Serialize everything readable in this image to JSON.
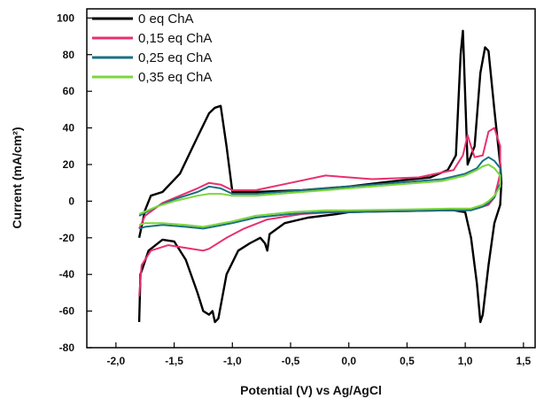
{
  "chart_data": {
    "type": "line",
    "title": "",
    "xlabel": "Potential (V) vs Ag/AgCl",
    "ylabel": "Current (mA/cm²)",
    "xlim": [
      -2.25,
      1.6
    ],
    "ylim": [
      -80,
      105
    ],
    "xticks": [
      "-2,0",
      "-1,5",
      "-1,0",
      "-0,5",
      "0,0",
      "0,5",
      "1,0",
      "1,5"
    ],
    "xtick_values": [
      -2.0,
      -1.5,
      -1.0,
      -0.5,
      0.0,
      0.5,
      1.0,
      1.5
    ],
    "yticks": [
      "-80",
      "-60",
      "-40",
      "-20",
      "0",
      "20",
      "40",
      "60",
      "80",
      "100"
    ],
    "ytick_values": [
      -80,
      -60,
      -40,
      -20,
      0,
      20,
      40,
      60,
      80,
      100
    ],
    "grid": false,
    "legend_position": "top-left",
    "series": [
      {
        "name": "0 eq ChA",
        "color": "#000000",
        "points": [
          [
            -1.8,
            -66
          ],
          [
            -1.79,
            -40
          ],
          [
            -1.72,
            -27
          ],
          [
            -1.6,
            -21
          ],
          [
            -1.5,
            -22
          ],
          [
            -1.4,
            -32
          ],
          [
            -1.3,
            -50
          ],
          [
            -1.25,
            -60
          ],
          [
            -1.2,
            -62
          ],
          [
            -1.17,
            -60
          ],
          [
            -1.15,
            -66
          ],
          [
            -1.12,
            -64
          ],
          [
            -1.05,
            -40
          ],
          [
            -0.95,
            -27
          ],
          [
            -0.85,
            -23
          ],
          [
            -0.76,
            -20
          ],
          [
            -0.72,
            -23
          ],
          [
            -0.7,
            -27
          ],
          [
            -0.68,
            -18
          ],
          [
            -0.55,
            -12
          ],
          [
            -0.35,
            -9
          ],
          [
            -0.1,
            -7
          ],
          [
            0.0,
            -6
          ],
          [
            0.3,
            -5.5
          ],
          [
            0.6,
            -5
          ],
          [
            0.9,
            -5
          ],
          [
            1.0,
            -6
          ],
          [
            1.05,
            -20
          ],
          [
            1.1,
            -45
          ],
          [
            1.13,
            -66
          ],
          [
            1.15,
            -62
          ],
          [
            1.2,
            -35
          ],
          [
            1.25,
            -12
          ],
          [
            1.3,
            -2
          ],
          [
            1.31,
            10
          ],
          [
            1.3,
            20
          ],
          [
            1.25,
            50
          ],
          [
            1.2,
            82
          ],
          [
            1.17,
            84
          ],
          [
            1.13,
            70
          ],
          [
            1.08,
            30
          ],
          [
            1.02,
            20
          ],
          [
            0.98,
            93
          ],
          [
            0.96,
            80
          ],
          [
            0.92,
            25
          ],
          [
            0.85,
            17
          ],
          [
            0.7,
            13
          ],
          [
            0.4,
            11
          ],
          [
            0.0,
            8
          ],
          [
            -0.4,
            6
          ],
          [
            -0.8,
            5
          ],
          [
            -1.0,
            5
          ],
          [
            -1.05,
            30
          ],
          [
            -1.1,
            52
          ],
          [
            -1.15,
            51
          ],
          [
            -1.2,
            48
          ],
          [
            -1.3,
            35
          ],
          [
            -1.45,
            15
          ],
          [
            -1.6,
            5
          ],
          [
            -1.7,
            3
          ],
          [
            -1.75,
            -5
          ],
          [
            -1.8,
            -20
          ]
        ]
      },
      {
        "name": "0,15 eq ChA",
        "color": "#e8306f",
        "points": [
          [
            -1.8,
            -52
          ],
          [
            -1.78,
            -35
          ],
          [
            -1.7,
            -27
          ],
          [
            -1.55,
            -24
          ],
          [
            -1.35,
            -26
          ],
          [
            -1.25,
            -27
          ],
          [
            -1.2,
            -26
          ],
          [
            -1.05,
            -20
          ],
          [
            -0.9,
            -15
          ],
          [
            -0.7,
            -10
          ],
          [
            -0.4,
            -7
          ],
          [
            -0.1,
            -6
          ],
          [
            0.0,
            -6
          ],
          [
            0.5,
            -5.5
          ],
          [
            0.9,
            -5
          ],
          [
            1.0,
            -5
          ],
          [
            1.1,
            -4
          ],
          [
            1.15,
            -3
          ],
          [
            1.2,
            -2
          ],
          [
            1.25,
            2
          ],
          [
            1.3,
            15
          ],
          [
            1.3,
            30
          ],
          [
            1.25,
            40
          ],
          [
            1.2,
            38
          ],
          [
            1.15,
            25
          ],
          [
            1.08,
            24
          ],
          [
            1.05,
            30
          ],
          [
            1.02,
            36
          ],
          [
            0.98,
            25
          ],
          [
            0.9,
            17
          ],
          [
            0.6,
            13
          ],
          [
            0.2,
            12
          ],
          [
            -0.2,
            14
          ],
          [
            -0.5,
            10
          ],
          [
            -0.8,
            6
          ],
          [
            -1.0,
            6
          ],
          [
            -1.1,
            9
          ],
          [
            -1.2,
            10
          ],
          [
            -1.3,
            7
          ],
          [
            -1.45,
            3
          ],
          [
            -1.6,
            -1
          ],
          [
            -1.75,
            -8
          ],
          [
            -1.8,
            -15
          ]
        ]
      },
      {
        "name": "0,25 eq ChA",
        "color": "#1a7080",
        "points": [
          [
            -1.8,
            -15
          ],
          [
            -1.75,
            -14
          ],
          [
            -1.6,
            -13
          ],
          [
            -1.4,
            -14
          ],
          [
            -1.25,
            -15
          ],
          [
            -1.0,
            -12
          ],
          [
            -0.8,
            -9
          ],
          [
            -0.5,
            -7
          ],
          [
            -0.2,
            -6
          ],
          [
            0.0,
            -6
          ],
          [
            0.5,
            -5.5
          ],
          [
            0.9,
            -5
          ],
          [
            1.05,
            -5
          ],
          [
            1.15,
            -3
          ],
          [
            1.2,
            -1
          ],
          [
            1.25,
            2
          ],
          [
            1.3,
            10
          ],
          [
            1.3,
            18
          ],
          [
            1.25,
            22
          ],
          [
            1.2,
            24
          ],
          [
            1.15,
            22
          ],
          [
            1.1,
            18
          ],
          [
            1.0,
            15
          ],
          [
            0.8,
            12
          ],
          [
            0.4,
            10
          ],
          [
            0.0,
            8
          ],
          [
            -0.4,
            6
          ],
          [
            -0.8,
            4
          ],
          [
            -1.0,
            4
          ],
          [
            -1.1,
            7
          ],
          [
            -1.2,
            8
          ],
          [
            -1.3,
            5
          ],
          [
            -1.5,
            1
          ],
          [
            -1.65,
            -3
          ],
          [
            -1.8,
            -8
          ]
        ]
      },
      {
        "name": "0,35 eq ChA",
        "color": "#7cd63c",
        "points": [
          [
            -1.8,
            -13
          ],
          [
            -1.75,
            -12
          ],
          [
            -1.6,
            -12
          ],
          [
            -1.4,
            -13
          ],
          [
            -1.25,
            -14
          ],
          [
            -1.0,
            -11
          ],
          [
            -0.8,
            -8
          ],
          [
            -0.5,
            -6
          ],
          [
            -0.2,
            -5
          ],
          [
            0.0,
            -5
          ],
          [
            0.5,
            -4.5
          ],
          [
            0.9,
            -4
          ],
          [
            1.05,
            -4
          ],
          [
            1.15,
            -2
          ],
          [
            1.2,
            0
          ],
          [
            1.25,
            3
          ],
          [
            1.3,
            8
          ],
          [
            1.3,
            14
          ],
          [
            1.25,
            18
          ],
          [
            1.2,
            20
          ],
          [
            1.15,
            19
          ],
          [
            1.1,
            17
          ],
          [
            1.0,
            14
          ],
          [
            0.8,
            11
          ],
          [
            0.4,
            9
          ],
          [
            0.0,
            7
          ],
          [
            -0.4,
            5
          ],
          [
            -0.8,
            3
          ],
          [
            -1.0,
            3
          ],
          [
            -1.1,
            4
          ],
          [
            -1.2,
            4
          ],
          [
            -1.3,
            3
          ],
          [
            -1.5,
            0
          ],
          [
            -1.65,
            -3
          ],
          [
            -1.8,
            -7
          ]
        ]
      }
    ]
  }
}
